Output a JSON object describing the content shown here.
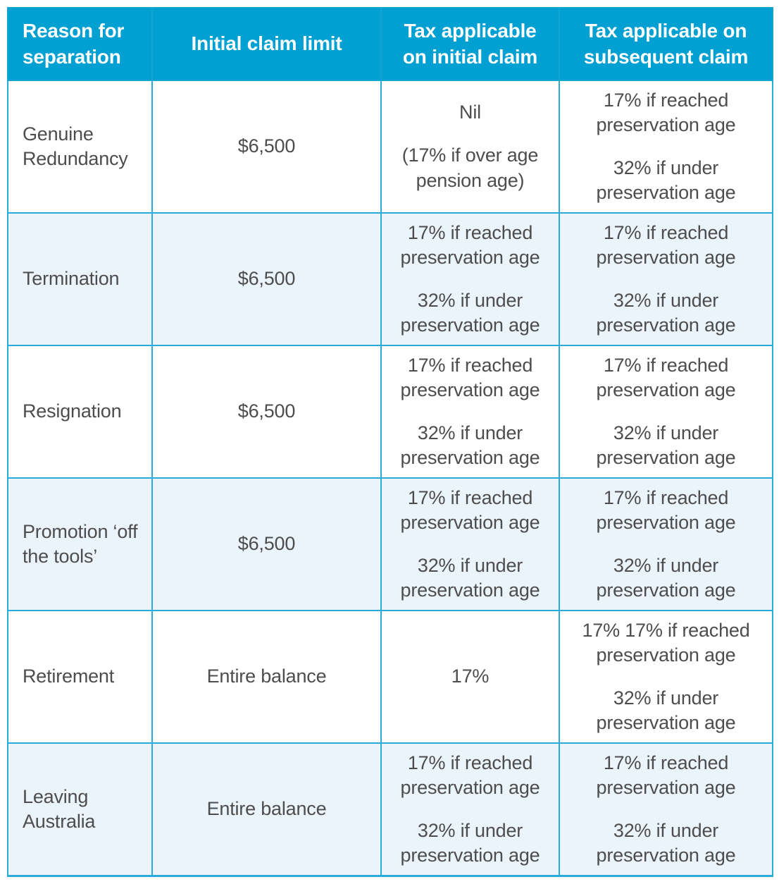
{
  "colors": {
    "header_bg": "#00a0d2",
    "header_text": "#ffffff",
    "border": "#29acd9",
    "stripe_row_bg": "#ecf4fb",
    "body_text": "#4d4d4f"
  },
  "table": {
    "columns": [
      "Reason for separation",
      "Initial claim limit",
      "Tax applicable on initial claim",
      "Tax applicable on subsequent claim"
    ],
    "rows": [
      {
        "reason": "Genuine Redundancy",
        "limit": "$6,500",
        "initial_tax": [
          "Nil",
          "(17% if over age pension age)"
        ],
        "subsequent_tax": [
          "17% if reached preservation age",
          "32% if under preservation age"
        ]
      },
      {
        "reason": "Termination",
        "limit": "$6,500",
        "initial_tax": [
          "17% if reached preservation age",
          "32% if under preservation age"
        ],
        "subsequent_tax": [
          "17% if reached preservation age",
          "32% if under preservation age"
        ]
      },
      {
        "reason": "Resignation",
        "limit": "$6,500",
        "initial_tax": [
          "17% if reached preservation age",
          "32% if under preservation age"
        ],
        "subsequent_tax": [
          "17% if reached preservation age",
          "32% if under preservation age"
        ]
      },
      {
        "reason": "Promotion ‘off the tools’",
        "limit": "$6,500",
        "initial_tax": [
          "17% if reached preservation age",
          "32% if under preservation age"
        ],
        "subsequent_tax": [
          "17% if reached preservation age",
          "32% if under preservation age"
        ]
      },
      {
        "reason": "Retirement",
        "limit": "Entire balance",
        "initial_tax": [
          "17%"
        ],
        "subsequent_tax": [
          "17% 17% if reached preservation age",
          "32% if under preservation age"
        ]
      },
      {
        "reason": "Leaving Australia",
        "limit": "Entire balance",
        "initial_tax": [
          "17% if reached preservation age",
          "32% if under preservation age"
        ],
        "subsequent_tax": [
          "17% if reached preservation age",
          "32% if under preservation age"
        ]
      }
    ]
  }
}
